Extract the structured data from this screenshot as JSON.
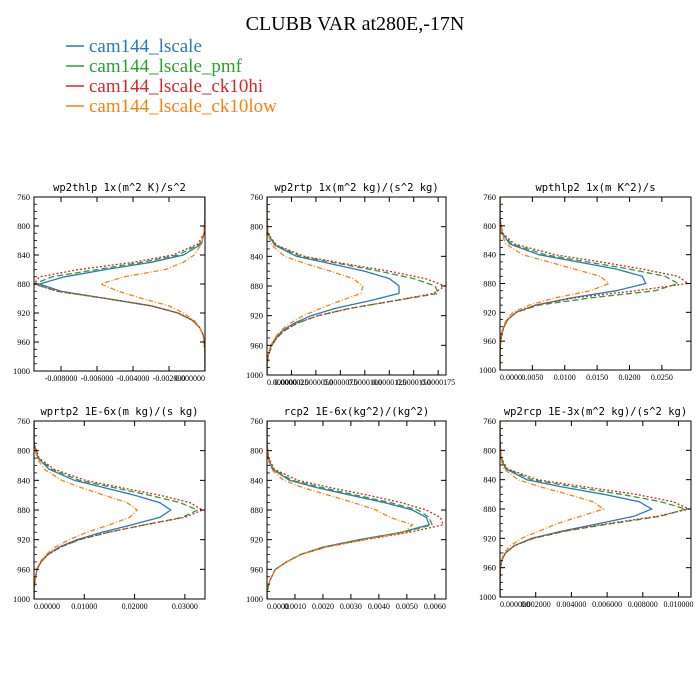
{
  "figure": {
    "title": "CLUBB VAR at280E,-17N"
  },
  "legend": [
    {
      "name": "cam144_lscale",
      "color": "#2a7ab8",
      "dash": ""
    },
    {
      "name": "cam144_lscale_pmf",
      "color": "#2ca02c",
      "dash": "6,3"
    },
    {
      "name": "cam144_lscale_ck10hi",
      "color": "#d62728",
      "dash": "2,2"
    },
    {
      "name": "cam144_lscale_ck10low",
      "color": "#ff7f0e",
      "dash": "5,2,1,2"
    }
  ],
  "chart_data": [
    {
      "type": "line",
      "title": "wp2thlp  1x(m^2 K)/s^2",
      "xlim": [
        -0.0095,
        0.0
      ],
      "ylim": [
        760,
        1000
      ],
      "yticks": [
        760,
        800,
        840,
        880,
        920,
        960,
        1000
      ],
      "xticks": [
        -0.008,
        -0.006,
        -0.004,
        -0.002,
        0.0
      ],
      "xtick_labels": [
        "-0.008000",
        "-0.006000",
        "-0.004000",
        "-0.002000",
        "0.000000"
      ],
      "levels": [
        760,
        790,
        810,
        825,
        840,
        850,
        860,
        870,
        880,
        890,
        900,
        910,
        920,
        930,
        940,
        950,
        960,
        975,
        990,
        1000
      ],
      "series": [
        {
          "name": "cam144_lscale",
          "values": [
            0,
            0,
            -5e-05,
            -0.0002,
            -0.0012,
            -0.003,
            -0.0055,
            -0.0078,
            -0.0092,
            -0.008,
            -0.0055,
            -0.003,
            -0.0015,
            -0.0007,
            -0.0003,
            -0.0001,
            -5e-05,
            0,
            0,
            0
          ]
        },
        {
          "name": "cam144_lscale_pmf",
          "values": [
            0,
            0,
            -5e-05,
            -0.0003,
            -0.0015,
            -0.0035,
            -0.006,
            -0.0085,
            -0.0095,
            -0.0082,
            -0.0055,
            -0.003,
            -0.0015,
            -0.0007,
            -0.0003,
            -0.0001,
            -5e-05,
            0,
            0,
            0
          ]
        },
        {
          "name": "cam144_lscale_ck10hi",
          "values": [
            0,
            0,
            -5e-05,
            -0.0004,
            -0.0018,
            -0.004,
            -0.007,
            -0.0092,
            -0.0095,
            -0.0082,
            -0.0055,
            -0.003,
            -0.0015,
            -0.0007,
            -0.0003,
            -0.0001,
            -5e-05,
            0,
            0,
            0
          ]
        },
        {
          "name": "cam144_lscale_ck10low",
          "values": [
            0,
            0,
            -5e-05,
            -0.0002,
            -0.0006,
            -0.0012,
            -0.0022,
            -0.0045,
            -0.0058,
            -0.0048,
            -0.0035,
            -0.002,
            -0.0012,
            -0.0006,
            -0.0003,
            -0.0001,
            -5e-05,
            0,
            0,
            0
          ]
        }
      ]
    },
    {
      "type": "line",
      "title": "wp2rtp  1x(m^2 kg)/(s^2 kg)",
      "xlim": [
        0.0,
        1.83e-05
      ],
      "ylim": [
        760,
        1000
      ],
      "yticks": [
        760,
        800,
        840,
        880,
        920,
        960,
        1000
      ],
      "xticks": [
        0.0,
        2.5e-06,
        5e-06,
        7.5e-06,
        1e-05,
        1.25e-05,
        1.5e-05,
        1.75e-05
      ],
      "xtick_labels": [
        "0.000000",
        "0.0000025",
        "0.0000050",
        "0.0000075",
        "0.0000100",
        "0.0000125",
        "0.0000150",
        "0.0000175"
      ],
      "levels": [
        760,
        790,
        810,
        825,
        840,
        850,
        860,
        870,
        880,
        890,
        900,
        910,
        920,
        930,
        940,
        950,
        960,
        975,
        990,
        1000
      ],
      "series": [
        {
          "name": "cam144_lscale",
          "values": [
            0,
            0,
            1e-07,
            8e-07,
            3e-06,
            6.5e-06,
            1e-05,
            1.25e-05,
            1.35e-05,
            1.35e-05,
            1.05e-05,
            7e-06,
            4.5e-06,
            2.8e-06,
            1.6e-06,
            9e-07,
            4e-07,
            1e-07,
            0,
            0
          ]
        },
        {
          "name": "cam144_lscale_pmf",
          "values": [
            0,
            0,
            1e-07,
            9e-07,
            3.4e-06,
            7.5e-06,
            1.15e-05,
            1.5e-05,
            1.72e-05,
            1.75e-05,
            1.3e-05,
            8.5e-06,
            5.2e-06,
            3.1e-06,
            1.8e-06,
            1e-06,
            5e-07,
            1e-07,
            0,
            0
          ]
        },
        {
          "name": "cam144_lscale_ck10hi",
          "values": [
            0,
            0,
            1e-07,
            1e-06,
            3.8e-06,
            8e-06,
            1.25e-05,
            1.62e-05,
            1.82e-05,
            1.7e-05,
            1.3e-05,
            8.5e-06,
            5.2e-06,
            3.1e-06,
            1.8e-06,
            1e-06,
            5e-07,
            1e-07,
            0,
            0
          ]
        },
        {
          "name": "cam144_lscale_ck10low",
          "values": [
            0,
            0,
            1e-07,
            5e-07,
            1.8e-06,
            4e-06,
            6.5e-06,
            8.8e-06,
            9.8e-06,
            9.6e-06,
            7.5e-06,
            5.5e-06,
            3.7e-06,
            2.4e-06,
            1.4e-06,
            8e-07,
            4e-07,
            1e-07,
            0,
            0
          ]
        }
      ]
    },
    {
      "type": "line",
      "title": "wpthlp2  1x(m K^2)/s",
      "xlim": [
        0.0,
        0.0295
      ],
      "ylim": [
        760,
        1000
      ],
      "yticks": [
        760,
        800,
        840,
        880,
        920,
        960,
        1000
      ],
      "xticks": [
        0.0,
        0.005,
        0.01,
        0.015,
        0.02,
        0.025
      ],
      "xtick_labels": [
        "0.0000",
        "0.0050",
        "0.0100",
        "0.0150",
        "0.0200",
        "0.0250"
      ],
      "levels": [
        760,
        790,
        810,
        825,
        840,
        850,
        860,
        870,
        880,
        890,
        900,
        910,
        920,
        930,
        940,
        950,
        960,
        975,
        990,
        1000
      ],
      "series": [
        {
          "name": "cam144_lscale",
          "values": [
            0,
            0,
            0.0003,
            0.0015,
            0.006,
            0.012,
            0.018,
            0.022,
            0.0225,
            0.018,
            0.011,
            0.0055,
            0.0025,
            0.0012,
            0.0006,
            0.0003,
            0.0001,
            0,
            0,
            0
          ]
        },
        {
          "name": "cam144_lscale_pmf",
          "values": [
            0,
            0,
            0.0003,
            0.0018,
            0.007,
            0.0135,
            0.02,
            0.0255,
            0.0275,
            0.024,
            0.014,
            0.006,
            0.0025,
            0.0012,
            0.0006,
            0.0003,
            0.0001,
            0,
            0,
            0
          ]
        },
        {
          "name": "cam144_lscale_ck10hi",
          "values": [
            0,
            0,
            0.0004,
            0.0022,
            0.0085,
            0.0155,
            0.022,
            0.0275,
            0.029,
            0.021,
            0.0115,
            0.0055,
            0.0025,
            0.0012,
            0.0006,
            0.0003,
            0.0001,
            0,
            0,
            0
          ]
        },
        {
          "name": "cam144_lscale_ck10low",
          "values": [
            0,
            0,
            0.0002,
            0.0009,
            0.0035,
            0.0075,
            0.0115,
            0.0155,
            0.0168,
            0.014,
            0.0085,
            0.0045,
            0.002,
            0.001,
            0.0005,
            0.0002,
            0.0001,
            0,
            0,
            0
          ]
        }
      ]
    },
    {
      "type": "line",
      "title": "wprtp2  1E-6x(m kg)/(s kg)",
      "xlim": [
        0.0,
        0.034
      ],
      "ylim": [
        760,
        1000
      ],
      "yticks": [
        760,
        800,
        840,
        880,
        920,
        960,
        1000
      ],
      "xticks": [
        0.0,
        0.01,
        0.02,
        0.03
      ],
      "xtick_labels": [
        "0.00000",
        "0.01000",
        "0.02000",
        "0.03000"
      ],
      "levels": [
        760,
        790,
        810,
        825,
        840,
        850,
        860,
        870,
        880,
        890,
        900,
        910,
        920,
        930,
        940,
        950,
        960,
        975,
        990,
        1000
      ],
      "series": [
        {
          "name": "cam144_lscale",
          "values": [
            0,
            0,
            0.0008,
            0.003,
            0.008,
            0.014,
            0.02,
            0.025,
            0.0272,
            0.025,
            0.0195,
            0.0135,
            0.0085,
            0.005,
            0.0027,
            0.0014,
            0.0006,
            0.0002,
            0,
            0
          ]
        },
        {
          "name": "cam144_lscale_pmf",
          "values": [
            0,
            0,
            0.0009,
            0.0035,
            0.009,
            0.016,
            0.023,
            0.029,
            0.0325,
            0.0295,
            0.022,
            0.0148,
            0.009,
            0.0053,
            0.0028,
            0.0014,
            0.0006,
            0.0002,
            0,
            0
          ]
        },
        {
          "name": "cam144_lscale_ck10hi",
          "values": [
            0,
            0,
            0.001,
            0.004,
            0.0102,
            0.0175,
            0.025,
            0.031,
            0.0335,
            0.03,
            0.022,
            0.0148,
            0.009,
            0.0053,
            0.0028,
            0.0014,
            0.0006,
            0.0002,
            0,
            0
          ]
        },
        {
          "name": "cam144_lscale_ck10low",
          "values": [
            0,
            0,
            0.0006,
            0.002,
            0.0055,
            0.0095,
            0.014,
            0.0185,
            0.0205,
            0.019,
            0.015,
            0.0105,
            0.007,
            0.0042,
            0.0024,
            0.0012,
            0.0005,
            0.0002,
            0,
            0
          ]
        }
      ]
    },
    {
      "type": "line",
      "title": "rcp2  1E-6x(kg^2)/(kg^2)",
      "xlim": [
        0.0,
        0.0064
      ],
      "ylim": [
        760,
        1000
      ],
      "yticks": [
        760,
        800,
        840,
        880,
        920,
        960,
        1000
      ],
      "xticks": [
        0.0,
        0.001,
        0.002,
        0.003,
        0.004,
        0.005,
        0.006
      ],
      "xtick_labels": [
        "0.0000",
        "0.0010",
        "0.0020",
        "0.0030",
        "0.0040",
        "0.0050",
        "0.0060"
      ],
      "levels": [
        760,
        790,
        810,
        825,
        840,
        850,
        860,
        870,
        880,
        890,
        900,
        910,
        920,
        930,
        940,
        950,
        960,
        975,
        990,
        1000
      ],
      "series": [
        {
          "name": "cam144_lscale",
          "values": [
            0,
            0,
            5e-05,
            0.0002,
            0.0008,
            0.0018,
            0.003,
            0.0042,
            0.0052,
            0.0057,
            0.0058,
            0.0048,
            0.0033,
            0.002,
            0.0012,
            0.0007,
            0.0003,
            0.0001,
            0,
            0
          ]
        },
        {
          "name": "cam144_lscale_pmf",
          "values": [
            0,
            0,
            5e-05,
            0.00022,
            0.0009,
            0.002,
            0.0032,
            0.0044,
            0.0054,
            0.0058,
            0.0059,
            0.0049,
            0.0034,
            0.0021,
            0.0012,
            0.0007,
            0.0003,
            0.0001,
            0,
            0
          ]
        },
        {
          "name": "cam144_lscale_ck10hi",
          "values": [
            0,
            0,
            6e-05,
            0.00026,
            0.0011,
            0.0023,
            0.0036,
            0.0048,
            0.0057,
            0.0062,
            0.0063,
            0.0051,
            0.0035,
            0.0021,
            0.0012,
            0.0007,
            0.0003,
            0.0001,
            0,
            0
          ]
        },
        {
          "name": "cam144_lscale_ck10low",
          "values": [
            0,
            0,
            3e-05,
            0.00015,
            0.0006,
            0.0013,
            0.0022,
            0.0031,
            0.0039,
            0.0044,
            0.0052,
            0.0049,
            0.0035,
            0.0021,
            0.0012,
            0.0007,
            0.0003,
            0.0001,
            0,
            0
          ]
        }
      ]
    },
    {
      "type": "line",
      "title": "wp2rcp  1E-3x(m^2 kg)/(s^2 kg)",
      "xlim": [
        0.0,
        0.0107
      ],
      "ylim": [
        760,
        1000
      ],
      "yticks": [
        760,
        800,
        840,
        880,
        920,
        960,
        1000
      ],
      "xticks": [
        0.0,
        0.002,
        0.004,
        0.006,
        0.008,
        0.01
      ],
      "xtick_labels": [
        "0.000000",
        "0.002000",
        "0.004000",
        "0.006000",
        "0.008000",
        "0.010000"
      ],
      "levels": [
        760,
        790,
        810,
        825,
        840,
        850,
        860,
        870,
        880,
        890,
        900,
        910,
        920,
        930,
        940,
        950,
        960,
        975,
        990,
        1000
      ],
      "series": [
        {
          "name": "cam144_lscale",
          "values": [
            0,
            0,
            5e-05,
            0.0003,
            0.0015,
            0.0035,
            0.0058,
            0.0078,
            0.0085,
            0.0075,
            0.0055,
            0.0035,
            0.0018,
            0.0008,
            0.0003,
            0.0001,
            3e-05,
            0,
            0,
            0
          ]
        },
        {
          "name": "cam144_lscale_pmf",
          "values": [
            0,
            0,
            6e-05,
            0.00035,
            0.0018,
            0.0042,
            0.0068,
            0.009,
            0.0104,
            0.009,
            0.0062,
            0.0037,
            0.0019,
            0.0008,
            0.0003,
            0.0001,
            3e-05,
            0,
            0,
            0
          ]
        },
        {
          "name": "cam144_lscale_ck10hi",
          "values": [
            0,
            0,
            7e-05,
            0.0004,
            0.0021,
            0.0048,
            0.0076,
            0.0097,
            0.0106,
            0.0088,
            0.006,
            0.0036,
            0.0018,
            0.0008,
            0.0003,
            0.0001,
            3e-05,
            0,
            0,
            0
          ]
        },
        {
          "name": "cam144_lscale_ck10low",
          "values": [
            0,
            0,
            4e-05,
            0.0002,
            0.001,
            0.0023,
            0.0038,
            0.0052,
            0.0058,
            0.0045,
            0.0032,
            0.0022,
            0.0012,
            0.0006,
            0.0002,
            0.0001,
            3e-05,
            0,
            0,
            0
          ]
        }
      ]
    }
  ]
}
